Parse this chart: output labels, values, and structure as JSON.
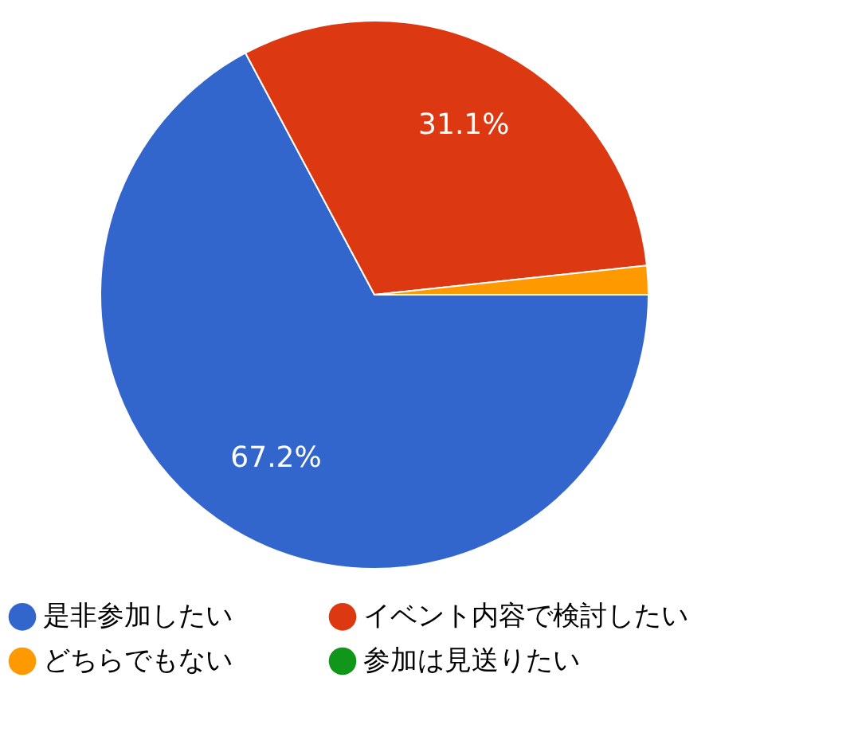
{
  "chart_data": {
    "type": "pie",
    "categories": [
      "是非参加したい",
      "イベント内容で検討したい",
      "どちらでもない",
      "参加は見送りたい"
    ],
    "values": [
      67.2,
      31.1,
      1.7,
      0
    ],
    "colors": [
      "#3366cc",
      "#dc3912",
      "#ff9900",
      "#109618"
    ],
    "value_labels": [
      "67.2%",
      "31.1%",
      null,
      null
    ],
    "legend": "bottom"
  }
}
